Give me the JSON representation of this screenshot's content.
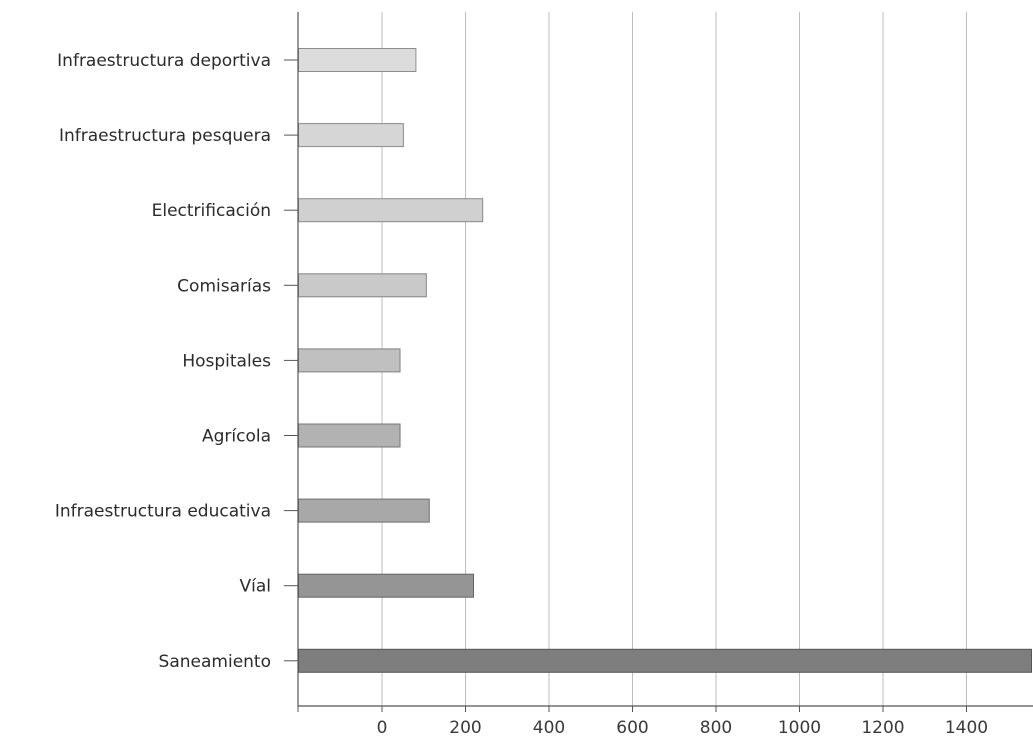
{
  "chart_data": {
    "type": "bar",
    "orientation": "horizontal",
    "title": "",
    "xlabel": "",
    "ylabel": "",
    "categories": [
      "Infraestructura deportiva",
      "Infraestructura pesquera",
      "Electrificación",
      "Comisarías",
      "Hospitales",
      "Agrícola",
      "Infraestructura educativa",
      "Víal",
      "Saneamiento"
    ],
    "values": [
      80,
      50,
      240,
      105,
      42,
      42,
      112,
      218,
      1660
    ],
    "x_ticks": [
      0,
      200,
      400,
      600,
      800,
      1000,
      1200,
      1400
    ],
    "xlim": [
      -200,
      1560
    ],
    "grid": true,
    "legend": "none",
    "colors": {
      "fills": [
        "#dcdcdc",
        "#d6d6d6",
        "#d0d0d0",
        "#c9c9c9",
        "#c0c0c0",
        "#b2b2b2",
        "#a8a8a8",
        "#959595",
        "#7e7e7e"
      ],
      "strokes": [
        "#8e8e8e",
        "#8a8a8a",
        "#888888",
        "#858585",
        "#808080",
        "#777777",
        "#6e6e6e",
        "#636363",
        "#555555"
      ]
    }
  }
}
